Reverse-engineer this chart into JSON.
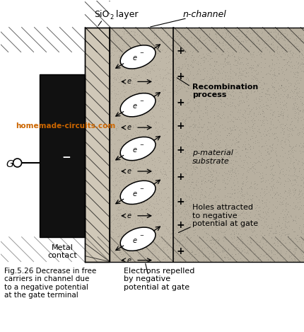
{
  "nchannel_label": "n-channel",
  "gate_label": "G",
  "metal_contact_label": "Metal\ncontact",
  "minus_label": "−",
  "recombination_label": "Recombination\nprocess",
  "pmaterial_label": "p-material\nsubstrate",
  "holes_label": "Holes attracted\nto negative\npotential at gate",
  "electrons_label": "Electrons repelled\nby negative\npotential at gate",
  "fig_caption": "Fig.5.26 Decrease in free\ncarriers in channel due\nto a negative potential\nat the gate terminal",
  "watermark": "homemade-circuits.com",
  "bg_color": "#ffffff",
  "substrate_color": "#b8b0a0",
  "channel_color": "#c0b8a8",
  "metal_color": "#111111",
  "sio2_bg": "#d8d0c0"
}
